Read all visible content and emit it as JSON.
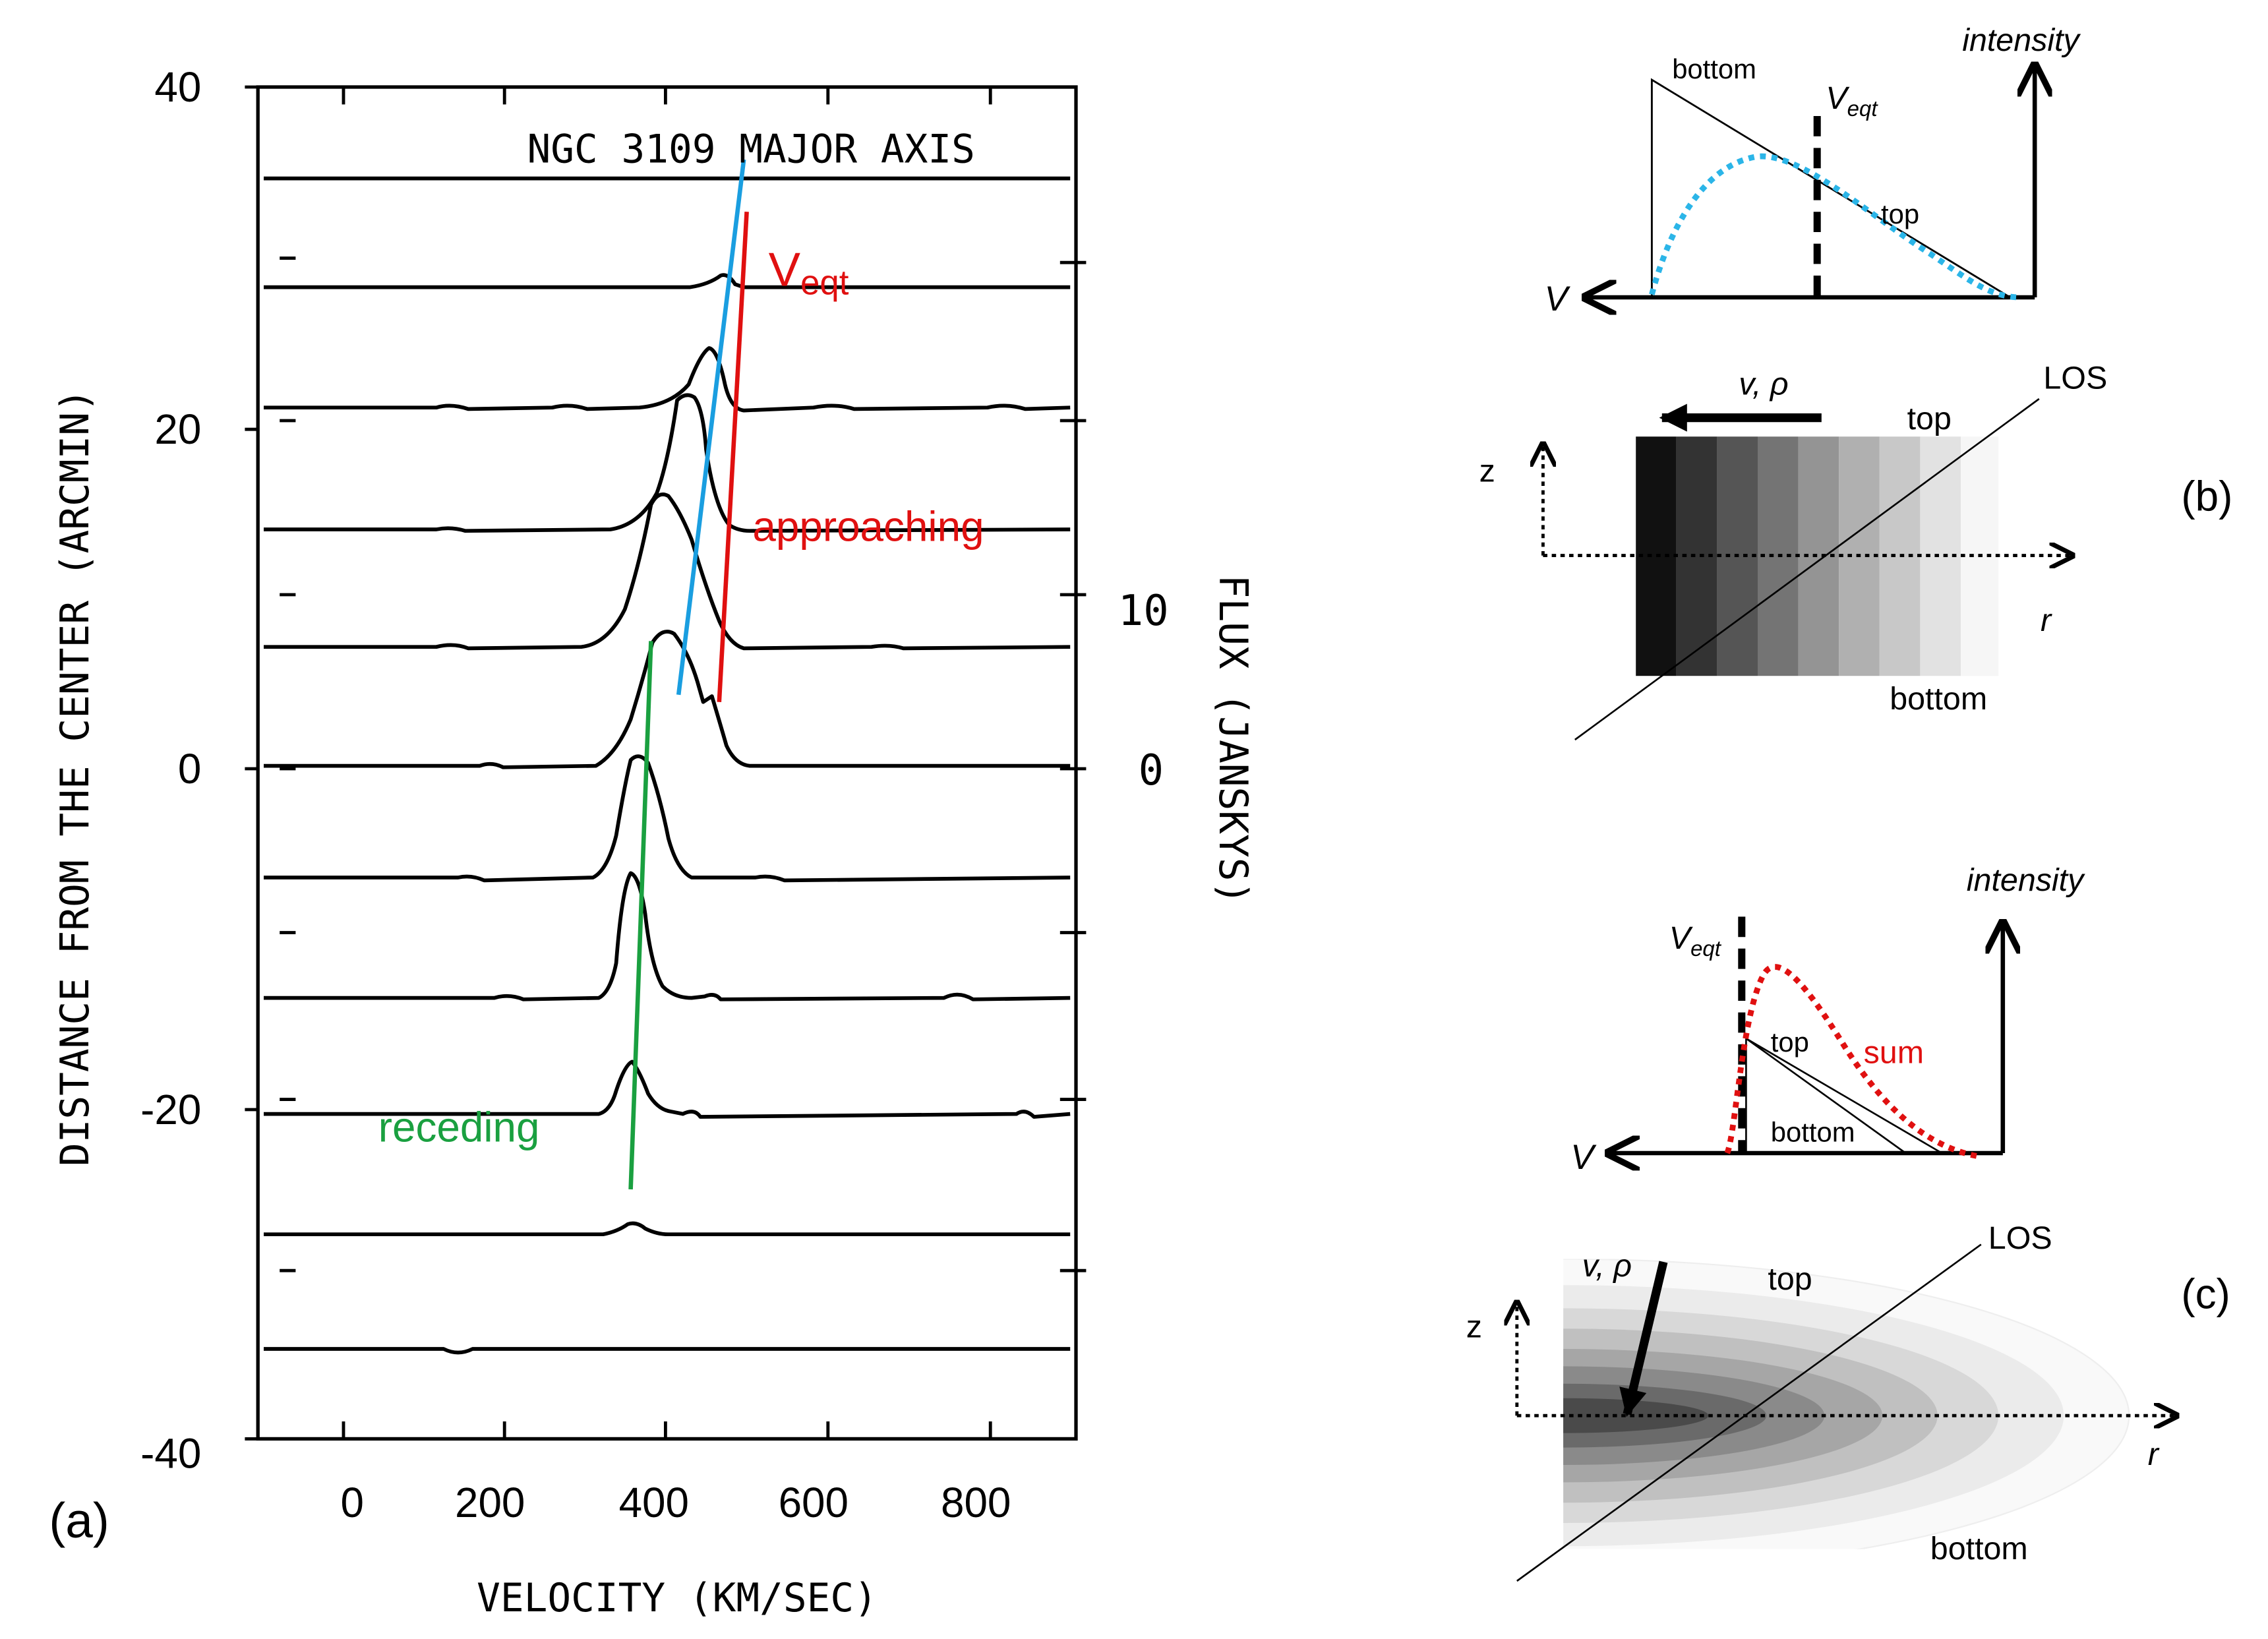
{
  "panel_a": {
    "label": "(a)",
    "title": "NGC 3109 Major axis",
    "title_display": "NGC 3109 MAJOR AXIS",
    "ylabel": "Distance from the center (arcmin)",
    "ylabel_display": "DISTANCE FROM THE CENTER (ARCMIN)",
    "xlabel": "Velocity (km/sec)",
    "xlabel_display": "VELOCITY (KM/SEC)",
    "flux_label": "Flux (Janskys)",
    "flux_label_display": "FLUX (JANSKYS)",
    "flux_ticks": [
      "10",
      "0"
    ],
    "y_ticks": [
      "40",
      "20",
      "0",
      "-20",
      "-40"
    ],
    "x_ticks": [
      "0",
      "200",
      "400",
      "600",
      "800"
    ],
    "annotations": {
      "veqt_main": "V",
      "veqt_sub": "eqt",
      "approaching": "approaching",
      "receding": "receding"
    },
    "colors": {
      "veqt": "#e01010",
      "approaching": "#e01010",
      "receding": "#1aa040",
      "fit": "#1a9ee0"
    }
  },
  "panel_b": {
    "label": "(b)",
    "intensity": "intensity",
    "v_axis": "V",
    "veqt_main": "V",
    "veqt_sub": "eqt",
    "bottom_curve": "bottom",
    "top_curve": "top",
    "flow": "v,  ρ",
    "los": "LOS",
    "top": "top",
    "bottom": "bottom",
    "z": "z",
    "r": "r",
    "curve_color": "#2bb5e8"
  },
  "panel_c": {
    "label": "(c)",
    "intensity": "intensity",
    "v_axis": "V",
    "veqt_main": "V",
    "veqt_sub": "eqt",
    "top_curve": "top",
    "bottom_curve": "bottom",
    "sum": "sum",
    "flow": "v,  ρ",
    "los": "LOS",
    "top": "top",
    "bottom": "bottom",
    "z": "z",
    "r": "r",
    "curve_color": "#e01010"
  }
}
